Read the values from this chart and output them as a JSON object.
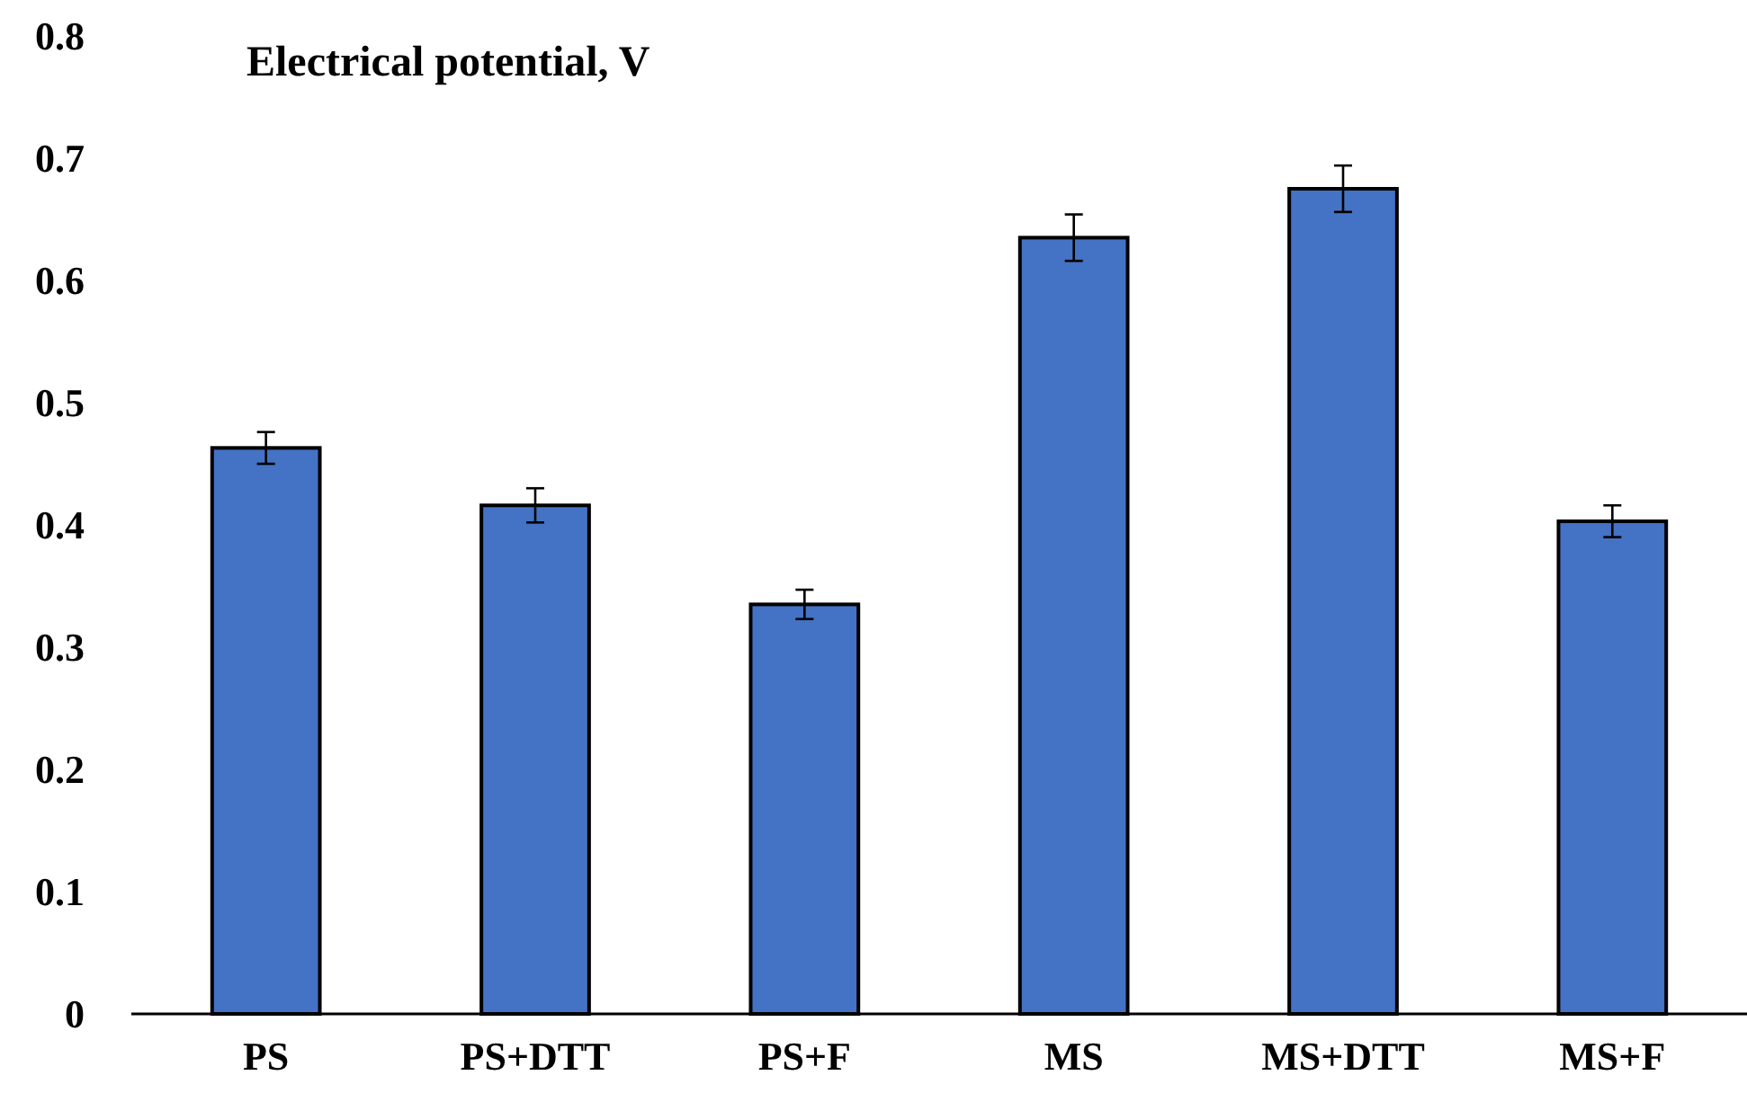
{
  "chart_data": {
    "type": "bar",
    "title": "Electrical potential, V",
    "categories": [
      "PS",
      "PS+DTT",
      "PS+F",
      "MS",
      "MS+DTT",
      "MS+F"
    ],
    "values": [
      0.463,
      0.416,
      0.335,
      0.635,
      0.675,
      0.403
    ],
    "errors": [
      0.013,
      0.014,
      0.012,
      0.019,
      0.019,
      0.013
    ],
    "color": "#4472c4",
    "ylim": [
      0,
      0.8
    ],
    "yticks": [
      {
        "value": 0,
        "label": "0"
      },
      0.1,
      0.2,
      0.3,
      0.4,
      0.5,
      0.6,
      0.7,
      0.8
    ],
    "grid": false
  }
}
